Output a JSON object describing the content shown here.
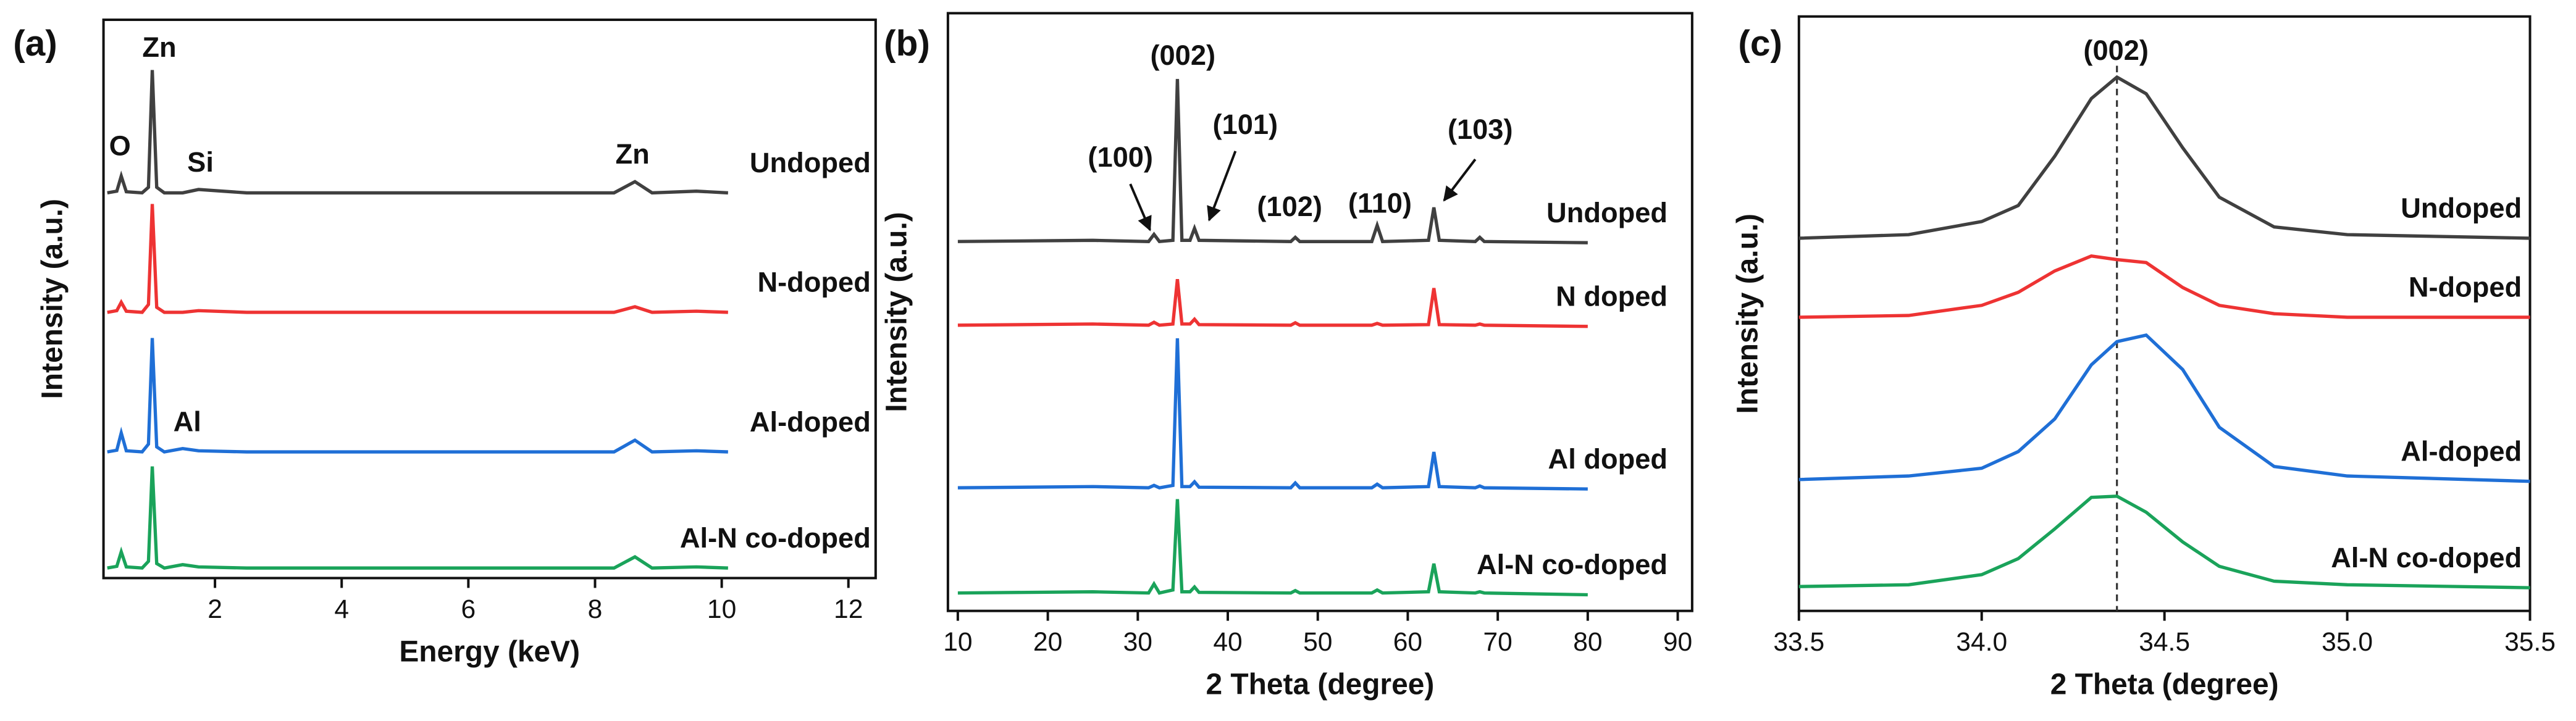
{
  "chart_data": [
    {
      "type": "line",
      "panel_label": "(a)",
      "xlabel": "Energy (keV)",
      "ylabel": "Intensity (a.u.)",
      "xlim": [
        0.24,
        12.43
      ],
      "xticks": [
        2,
        4,
        6,
        8,
        10,
        12
      ],
      "ylim": [
        0,
        100
      ],
      "annotations": [
        "Zn",
        "O",
        "Si",
        "Zn",
        "Al"
      ],
      "x": [
        0.3,
        0.45,
        0.52,
        0.6,
        0.85,
        0.95,
        1.01,
        1.08,
        1.2,
        1.49,
        1.74,
        2.5,
        5,
        8.3,
        8.63,
        8.9,
        9.6,
        10.1
      ],
      "series": [
        {
          "name": "Undoped",
          "color": "#404040",
          "values": [
            69,
            69.3,
            72,
            69.2,
            69,
            70,
            91,
            70,
            69,
            69,
            69.6,
            69,
            69,
            69,
            71,
            69,
            69.3,
            69
          ]
        },
        {
          "name": "N-doped",
          "color": "#ee3333",
          "values": [
            47.6,
            47.9,
            49.4,
            47.8,
            47.6,
            49,
            67,
            48.5,
            47.6,
            47.6,
            47.9,
            47.6,
            47.6,
            47.6,
            48.6,
            47.6,
            47.8,
            47.6
          ]
        },
        {
          "name": "Al-doped",
          "color": "#1f6fd6",
          "values": [
            22.6,
            22.9,
            26,
            22.8,
            22.6,
            24,
            43,
            23.5,
            22.6,
            23.2,
            22.8,
            22.6,
            22.6,
            22.6,
            24.7,
            22.6,
            22.8,
            22.6
          ]
        },
        {
          "name": "Al-N co-doped",
          "color": "#1aa35a",
          "values": [
            1.8,
            2.1,
            4.7,
            2.0,
            1.8,
            3,
            20,
            2.6,
            1.8,
            2.4,
            2.0,
            1.8,
            1.8,
            1.8,
            3.8,
            1.8,
            2.0,
            1.8
          ]
        }
      ]
    },
    {
      "type": "line",
      "panel_label": "(b)",
      "xlabel": "2 Theta (degree)",
      "ylabel": "Intensity (a.u.)",
      "xlim": [
        8.9,
        91.6
      ],
      "xticks": [
        10,
        20,
        30,
        40,
        50,
        60,
        70,
        80,
        90
      ],
      "ylim": [
        0,
        100
      ],
      "annotations": [
        "(002)",
        "(100)",
        "(101)",
        "(102)",
        "(110)",
        "(103)"
      ],
      "x": [
        10,
        25,
        31.2,
        31.8,
        32.4,
        33.9,
        34.4,
        34.9,
        35.8,
        36.3,
        36.8,
        47,
        47.5,
        48,
        56,
        56.6,
        57.2,
        62.3,
        62.9,
        63.5,
        67.5,
        68,
        68.5,
        80
      ],
      "series": [
        {
          "name": "Undoped",
          "color": "#404040",
          "values": [
            61.8,
            62,
            61.8,
            63,
            61.8,
            62,
            89,
            62,
            62,
            64,
            62,
            61.8,
            62.5,
            61.8,
            61.8,
            64.5,
            61.8,
            62,
            67.5,
            62,
            61.8,
            62.5,
            61.8,
            61.6
          ]
        },
        {
          "name": "N doped",
          "color": "#ee3333",
          "values": [
            47.8,
            48,
            47.8,
            48.3,
            47.8,
            48,
            55.5,
            48,
            48,
            48.8,
            47.9,
            47.8,
            48.2,
            47.8,
            47.8,
            48.1,
            47.8,
            47.9,
            54,
            47.9,
            47.8,
            48,
            47.8,
            47.6
          ]
        },
        {
          "name": "Al doped",
          "color": "#1f6fd6",
          "values": [
            20.6,
            20.8,
            20.6,
            21,
            20.6,
            21,
            45.6,
            20.8,
            20.8,
            21.6,
            20.7,
            20.6,
            21.4,
            20.6,
            20.6,
            21.2,
            20.6,
            20.8,
            26.6,
            20.8,
            20.6,
            20.9,
            20.6,
            20.4
          ]
        },
        {
          "name": "Al-N co-doped",
          "color": "#1aa35a",
          "values": [
            3,
            3.2,
            3,
            4.5,
            3,
            3.5,
            18.7,
            3.2,
            3.2,
            4,
            3.1,
            3,
            3.4,
            3,
            3,
            3.5,
            3,
            3.2,
            7.9,
            3.2,
            3,
            3.2,
            3,
            2.7
          ]
        }
      ]
    },
    {
      "type": "line",
      "panel_label": "(c)",
      "xlabel": "2 Theta (degree)",
      "ylabel": "Intensity (a.u.)",
      "xlim": [
        33.5,
        35.5
      ],
      "xticks": [
        33.5,
        {
          "value": 34,
          "label": "34.0"
        },
        34.5,
        {
          "value": 35,
          "label": "35.0"
        },
        35.5
      ],
      "ylim": [
        0,
        100
      ],
      "annotations": [
        "(002)"
      ],
      "reference_x": 34.37,
      "x": [
        33.5,
        33.8,
        34.0,
        34.1,
        34.2,
        34.3,
        34.37,
        34.45,
        34.55,
        34.65,
        34.8,
        35.0,
        35.5
      ],
      "series": [
        {
          "name": "Undoped",
          "color": "#404040",
          "values": [
            62.7,
            63.3,
            65.5,
            68.2,
            76.5,
            86.2,
            89.8,
            87,
            77.9,
            69.6,
            64.6,
            63.3,
            62.7
          ]
        },
        {
          "name": "N-doped",
          "color": "#ee3333",
          "values": [
            49.4,
            49.7,
            51.4,
            53.6,
            57.2,
            59.7,
            59.1,
            58.6,
            54.4,
            51.4,
            50,
            49.4,
            49.4
          ]
        },
        {
          "name": "Al-doped",
          "color": "#1f6fd6",
          "values": [
            22.1,
            22.7,
            24,
            26.8,
            32.3,
            41.4,
            45.3,
            46.4,
            40.6,
            30.9,
            24.3,
            22.7,
            21.8
          ]
        },
        {
          "name": "Al-N co-doped",
          "color": "#1aa35a",
          "values": [
            4.1,
            4.4,
            6.1,
            8.8,
            13.8,
            19.1,
            19.3,
            16.6,
            11.6,
            7.5,
            5,
            4.4,
            3.9
          ]
        }
      ]
    }
  ]
}
